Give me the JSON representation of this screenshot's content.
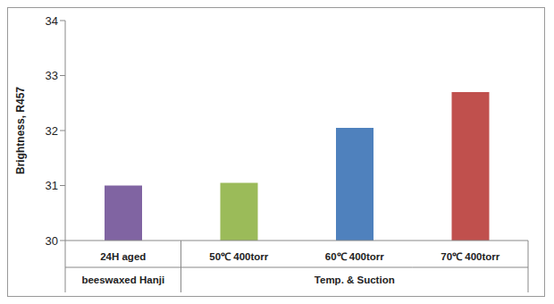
{
  "chart_data": {
    "type": "bar",
    "y_label": "Brightness, R457",
    "categories": [
      "24H aged",
      "50℃ 400torr",
      "60℃ 400torr",
      "70℃ 400torr"
    ],
    "groups": [
      "beeswaxed Hanji",
      "Temp. & Suction",
      "Temp. & Suction",
      "Temp. & Suction"
    ],
    "values": [
      31.0,
      31.05,
      32.05,
      32.7
    ],
    "colors": [
      "#8064a2",
      "#9bbb59",
      "#4f81bd",
      "#c0504d"
    ],
    "ylim": [
      30,
      34
    ],
    "yticks": [
      30,
      31,
      32,
      33,
      34
    ],
    "grid": false
  }
}
